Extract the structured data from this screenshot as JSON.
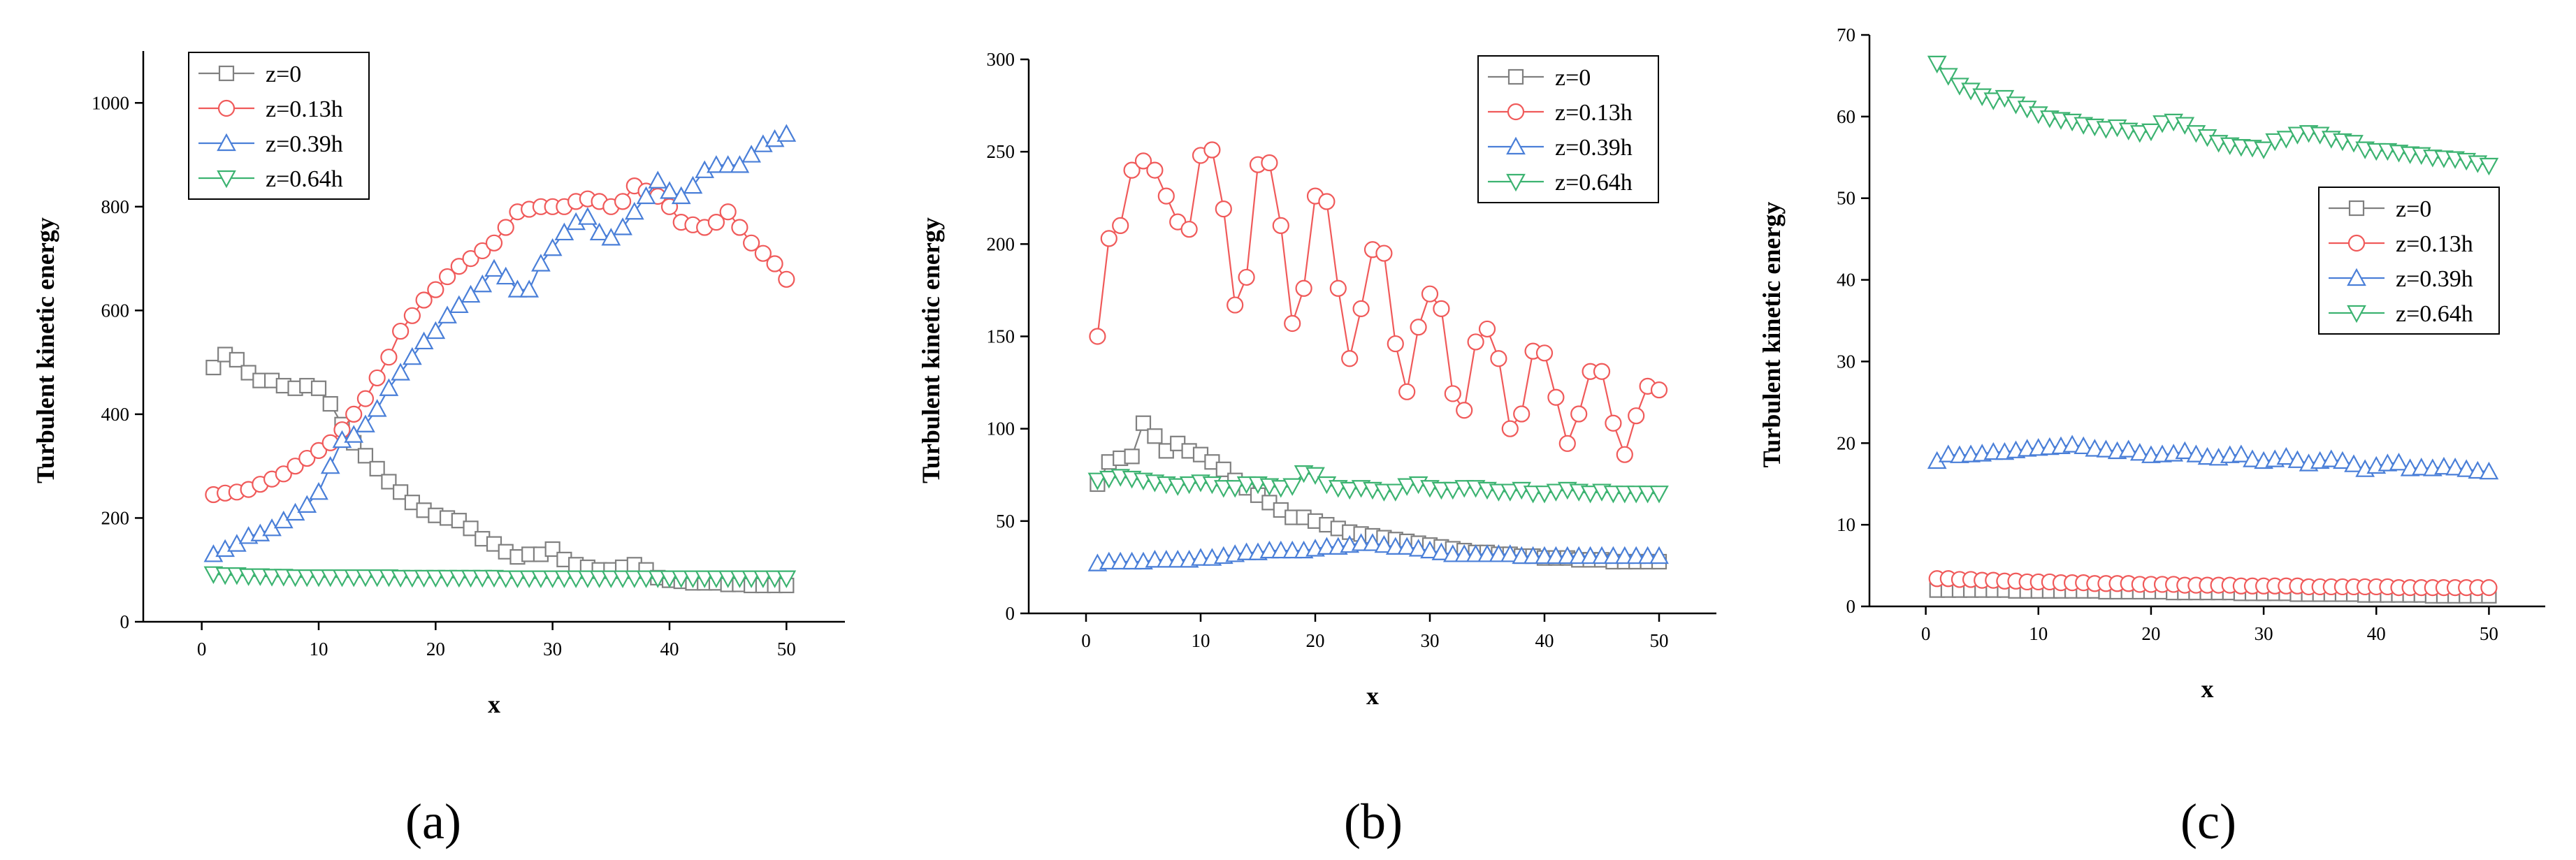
{
  "chart_data": [
    {
      "type": "line",
      "panel_label": "(a)",
      "xlabel": "x",
      "ylabel": "Turbulent kinetic energy",
      "xlim": [
        -5,
        55
      ],
      "ylim": [
        0,
        1100
      ],
      "xticks": [
        "0",
        "10",
        "20",
        "30",
        "40",
        "50"
      ],
      "yticks": [
        "0",
        "200",
        "400",
        "600",
        "800",
        "1000"
      ],
      "legend_position": "top-left",
      "x": [
        1,
        2,
        3,
        4,
        5,
        6,
        7,
        8,
        9,
        10,
        11,
        12,
        13,
        14,
        15,
        16,
        17,
        18,
        19,
        20,
        21,
        22,
        23,
        24,
        25,
        26,
        27,
        28,
        29,
        30,
        31,
        32,
        33,
        34,
        35,
        36,
        37,
        38,
        39,
        40,
        41,
        42,
        43,
        44,
        45,
        46,
        47,
        48,
        49,
        50
      ],
      "series": [
        {
          "name": "z=0",
          "color": "#808080",
          "marker": "square",
          "values": [
            490,
            515,
            505,
            480,
            465,
            465,
            455,
            450,
            455,
            450,
            420,
            380,
            345,
            320,
            295,
            270,
            250,
            230,
            215,
            205,
            200,
            195,
            180,
            160,
            150,
            135,
            125,
            130,
            130,
            140,
            120,
            110,
            105,
            100,
            100,
            105,
            110,
            100,
            85,
            80,
            78,
            75,
            75,
            75,
            72,
            72,
            70,
            70,
            70,
            70
          ]
        },
        {
          "name": "z=0.13h",
          "color": "#f05a5a",
          "marker": "circle",
          "values": [
            245,
            248,
            250,
            255,
            265,
            275,
            285,
            300,
            315,
            330,
            345,
            370,
            400,
            430,
            470,
            510,
            560,
            590,
            620,
            640,
            665,
            685,
            700,
            715,
            730,
            760,
            790,
            795,
            800,
            800,
            800,
            810,
            815,
            810,
            800,
            810,
            840,
            830,
            820,
            800,
            770,
            765,
            760,
            770,
            790,
            760,
            730,
            710,
            690,
            660
          ]
        },
        {
          "name": "z=0.39h",
          "color": "#4a7fd8",
          "marker": "triangle-up",
          "values": [
            130,
            140,
            150,
            165,
            170,
            180,
            195,
            210,
            225,
            250,
            300,
            350,
            360,
            380,
            410,
            450,
            480,
            510,
            540,
            560,
            590,
            610,
            630,
            650,
            680,
            665,
            640,
            640,
            690,
            720,
            750,
            770,
            780,
            750,
            740,
            760,
            790,
            820,
            850,
            830,
            820,
            840,
            870,
            880,
            880,
            880,
            900,
            920,
            930,
            940
          ]
        },
        {
          "name": "z=0.64h",
          "color": "#3cb371",
          "marker": "triangle-down",
          "values": [
            92,
            90,
            90,
            88,
            88,
            87,
            87,
            86,
            86,
            86,
            86,
            86,
            86,
            86,
            86,
            86,
            85,
            85,
            85,
            85,
            85,
            85,
            85,
            85,
            85,
            84,
            84,
            84,
            84,
            84,
            84,
            84,
            84,
            84,
            84,
            84,
            84,
            84,
            84,
            84,
            84,
            84,
            84,
            84,
            84,
            84,
            84,
            84,
            84,
            84
          ]
        }
      ]
    },
    {
      "type": "line",
      "panel_label": "(b)",
      "xlabel": "x",
      "ylabel": "Turbulent kinetic energy",
      "xlim": [
        -5,
        55
      ],
      "ylim": [
        0,
        300
      ],
      "xticks": [
        "0",
        "10",
        "20",
        "30",
        "40",
        "50"
      ],
      "yticks": [
        "0",
        "50",
        "100",
        "150",
        "200",
        "250",
        "300"
      ],
      "legend_position": "top-right",
      "x": [
        1,
        2,
        3,
        4,
        5,
        6,
        7,
        8,
        9,
        10,
        11,
        12,
        13,
        14,
        15,
        16,
        17,
        18,
        19,
        20,
        21,
        22,
        23,
        24,
        25,
        26,
        27,
        28,
        29,
        30,
        31,
        32,
        33,
        34,
        35,
        36,
        37,
        38,
        39,
        40,
        41,
        42,
        43,
        44,
        45,
        46,
        47,
        48,
        49,
        50
      ],
      "series": [
        {
          "name": "z=0",
          "color": "#808080",
          "marker": "square",
          "values": [
            70,
            82,
            84,
            85,
            103,
            96,
            88,
            92,
            88,
            86,
            82,
            78,
            72,
            68,
            64,
            60,
            56,
            52,
            52,
            50,
            48,
            46,
            44,
            43,
            42,
            41,
            40,
            39,
            38,
            37,
            36,
            35,
            34,
            33,
            33,
            32,
            32,
            31,
            31,
            30,
            30,
            30,
            29,
            29,
            29,
            28,
            28,
            28,
            28,
            28
          ]
        },
        {
          "name": "z=0.13h",
          "color": "#f05a5a",
          "marker": "circle",
          "values": [
            150,
            203,
            210,
            240,
            245,
            240,
            226,
            212,
            208,
            248,
            251,
            219,
            167,
            182,
            243,
            244,
            210,
            157,
            176,
            226,
            223,
            176,
            138,
            165,
            197,
            195,
            146,
            120,
            155,
            173,
            165,
            119,
            110,
            147,
            154,
            138,
            100,
            108,
            142,
            141,
            117,
            92,
            108,
            131,
            131,
            103,
            86,
            107,
            123,
            121
          ]
        },
        {
          "name": "z=0.39h",
          "color": "#4a7fd8",
          "marker": "triangle-up",
          "values": [
            27,
            28,
            28,
            28,
            28,
            29,
            29,
            29,
            29,
            30,
            30,
            31,
            32,
            33,
            33,
            34,
            34,
            34,
            34,
            35,
            36,
            36,
            37,
            38,
            38,
            37,
            36,
            36,
            35,
            34,
            33,
            32,
            32,
            32,
            32,
            32,
            32,
            31,
            31,
            31,
            31,
            31,
            31,
            31,
            31,
            31,
            31,
            31,
            31,
            31
          ]
        },
        {
          "name": "z=0.64h",
          "color": "#3cb371",
          "marker": "triangle-down",
          "values": [
            72,
            73,
            74,
            73,
            72,
            71,
            70,
            69,
            70,
            71,
            70,
            68,
            68,
            70,
            70,
            69,
            68,
            69,
            76,
            75,
            70,
            68,
            67,
            68,
            67,
            66,
            66,
            69,
            70,
            68,
            67,
            67,
            68,
            68,
            67,
            66,
            66,
            67,
            65,
            65,
            66,
            67,
            66,
            65,
            66,
            65,
            65,
            65,
            65,
            65
          ]
        }
      ]
    },
    {
      "type": "line",
      "panel_label": "(c)",
      "xlabel": "x",
      "ylabel": "Turbulent kinetic energy",
      "xlim": [
        -5,
        55
      ],
      "ylim": [
        0,
        70
      ],
      "xticks": [
        "0",
        "10",
        "20",
        "30",
        "40",
        "50"
      ],
      "yticks": [
        "0",
        "10",
        "20",
        "30",
        "40",
        "50",
        "60",
        "70"
      ],
      "legend_position": "center-right",
      "x": [
        1,
        2,
        3,
        4,
        5,
        6,
        7,
        8,
        9,
        10,
        11,
        12,
        13,
        14,
        15,
        16,
        17,
        18,
        19,
        20,
        21,
        22,
        23,
        24,
        25,
        26,
        27,
        28,
        29,
        30,
        31,
        32,
        33,
        34,
        35,
        36,
        37,
        38,
        39,
        40,
        41,
        42,
        43,
        44,
        45,
        46,
        47,
        48,
        49,
        50
      ],
      "series": [
        {
          "name": "z=0",
          "color": "#808080",
          "marker": "square",
          "values": [
            2.0,
            2.0,
            2.0,
            2.0,
            2.0,
            2.0,
            2.0,
            1.9,
            1.9,
            1.9,
            1.9,
            1.9,
            1.9,
            1.9,
            1.9,
            1.8,
            1.8,
            1.8,
            1.8,
            1.8,
            1.8,
            1.7,
            1.7,
            1.7,
            1.7,
            1.7,
            1.7,
            1.6,
            1.6,
            1.6,
            1.6,
            1.6,
            1.5,
            1.5,
            1.5,
            1.5,
            1.5,
            1.5,
            1.4,
            1.4,
            1.4,
            1.4,
            1.4,
            1.4,
            1.3,
            1.3,
            1.3,
            1.3,
            1.3,
            1.3
          ]
        },
        {
          "name": "z=0.13h",
          "color": "#f05a5a",
          "marker": "circle",
          "values": [
            3.4,
            3.4,
            3.3,
            3.3,
            3.2,
            3.2,
            3.1,
            3.1,
            3.0,
            3.0,
            3.0,
            2.9,
            2.9,
            2.9,
            2.8,
            2.8,
            2.8,
            2.8,
            2.7,
            2.7,
            2.7,
            2.7,
            2.6,
            2.6,
            2.6,
            2.6,
            2.6,
            2.5,
            2.5,
            2.5,
            2.5,
            2.5,
            2.5,
            2.4,
            2.4,
            2.4,
            2.4,
            2.4,
            2.4,
            2.4,
            2.4,
            2.3,
            2.3,
            2.3,
            2.3,
            2.3,
            2.3,
            2.3,
            2.3,
            2.3
          ]
        },
        {
          "name": "z=0.39h",
          "color": "#4a7fd8",
          "marker": "triangle-up",
          "values": [
            17.8,
            18.6,
            18.5,
            18.6,
            18.7,
            18.9,
            18.9,
            19.1,
            19.3,
            19.4,
            19.5,
            19.6,
            19.8,
            19.6,
            19.3,
            19.2,
            19.0,
            19.2,
            18.8,
            18.5,
            18.6,
            18.7,
            19.0,
            18.6,
            18.3,
            18.2,
            18.5,
            18.6,
            18.0,
            17.8,
            18.0,
            18.3,
            17.9,
            17.5,
            17.8,
            18.0,
            17.8,
            17.4,
            16.8,
            17.2,
            17.5,
            17.6,
            16.9,
            17.0,
            16.9,
            17.1,
            17.0,
            16.8,
            16.6,
            16.5
          ]
        },
        {
          "name": "z=0.64h",
          "color": "#3cb371",
          "marker": "triangle-down",
          "values": [
            66.5,
            65.0,
            63.8,
            63.2,
            62.5,
            62.0,
            62.3,
            61.5,
            61.0,
            60.3,
            59.8,
            59.6,
            59.4,
            59.0,
            58.8,
            58.5,
            58.7,
            58.3,
            58.0,
            58.2,
            59.2,
            59.4,
            59.0,
            58.0,
            57.5,
            56.8,
            56.5,
            56.3,
            56.2,
            56.0,
            57.0,
            57.3,
            57.8,
            58.0,
            57.8,
            57.3,
            57.0,
            56.8,
            56.0,
            55.8,
            55.8,
            55.6,
            55.4,
            55.3,
            55.0,
            54.9,
            54.8,
            54.6,
            54.3,
            54.0
          ]
        }
      ]
    }
  ]
}
